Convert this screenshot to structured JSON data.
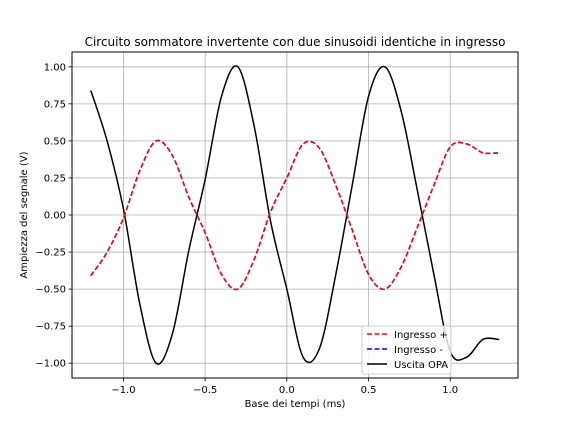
{
  "chart_data": {
    "type": "line",
    "title": "Circuito sommatore invertente con due sinusoidi identiche in ingresso",
    "xlabel": "Base dei tempi (ms)",
    "ylabel": "Ampiezza del segnale (V)",
    "xlim": [
      -1.315,
      1.415
    ],
    "ylim": [
      -1.1,
      1.1
    ],
    "xticks": [
      -1.0,
      -0.5,
      0.0,
      0.5,
      1.0
    ],
    "xtick_labels": [
      "−1.0",
      "−0.5",
      "0.0",
      "0.5",
      "1.0"
    ],
    "yticks": [
      -1.0,
      -0.75,
      -0.5,
      -0.25,
      0.0,
      0.25,
      0.5,
      0.75,
      1.0
    ],
    "ytick_labels": [
      "−1.00",
      "−0.75",
      "−0.50",
      "−0.25",
      "0.00",
      "0.25",
      "0.50",
      "0.75",
      "1.00"
    ],
    "grid": true,
    "legend_position": "lower-right",
    "x": [
      -1.2,
      -1.1,
      -1.0,
      -0.9,
      -0.8,
      -0.7,
      -0.6,
      -0.5,
      -0.4,
      -0.3,
      -0.2,
      -0.1,
      0.0,
      0.1,
      0.2,
      0.3,
      0.4,
      0.5,
      0.6,
      0.7,
      0.8,
      0.9,
      1.0,
      1.1,
      1.2,
      1.3
    ],
    "series": [
      {
        "name": "Ingresso +",
        "color": "#ff0000",
        "dash": "dashed",
        "values": [
          -0.41,
          -0.25,
          -0.02,
          0.3,
          0.5,
          0.4,
          0.12,
          -0.12,
          -0.4,
          -0.5,
          -0.3,
          0.02,
          0.25,
          0.48,
          0.45,
          0.2,
          -0.1,
          -0.4,
          -0.5,
          -0.35,
          -0.08,
          0.2,
          0.46,
          0.48,
          0.42,
          0.42
        ]
      },
      {
        "name": "Ingresso -",
        "color": "#0000ff",
        "dash": "dashed",
        "values": [
          -0.41,
          -0.25,
          -0.02,
          0.3,
          0.5,
          0.4,
          0.12,
          -0.12,
          -0.4,
          -0.5,
          -0.3,
          0.02,
          0.25,
          0.48,
          0.45,
          0.2,
          -0.1,
          -0.4,
          -0.5,
          -0.35,
          -0.08,
          0.2,
          0.46,
          0.48,
          0.42,
          0.42
        ]
      },
      {
        "name": "Uscita OPA",
        "color": "#000000",
        "dash": "solid",
        "values": [
          0.84,
          0.5,
          0.04,
          -0.6,
          -1.0,
          -0.8,
          -0.24,
          0.24,
          0.8,
          1.0,
          0.6,
          -0.04,
          -0.5,
          -0.96,
          -0.9,
          -0.4,
          0.2,
          0.8,
          1.0,
          0.7,
          0.16,
          -0.4,
          -0.92,
          -0.96,
          -0.84,
          -0.84
        ]
      }
    ]
  }
}
